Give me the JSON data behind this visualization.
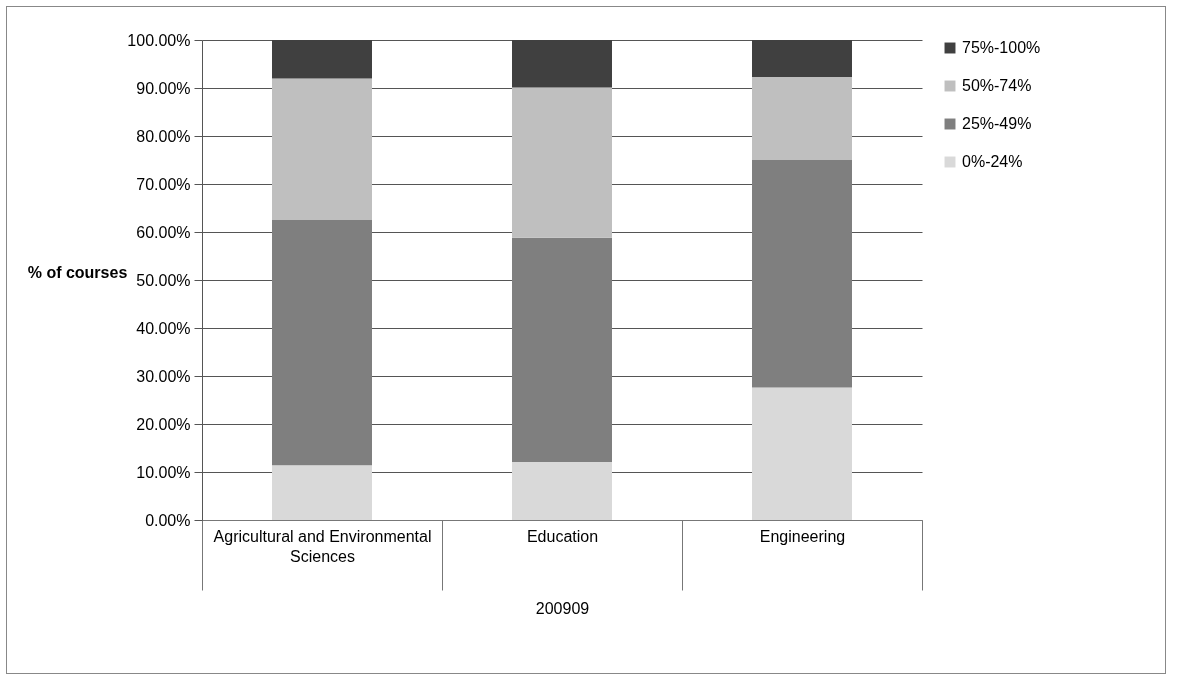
{
  "chart_data": {
    "type": "bar",
    "stacked": true,
    "ylabel": "% of courses",
    "xlabel": "200909",
    "categories": [
      "Agricultural and Environmental Sciences",
      "Education",
      "Engineering"
    ],
    "series": [
      {
        "name": "0%-24%",
        "color": "#d9d9d9",
        "values": [
          11.4,
          12.1,
          27.6
        ]
      },
      {
        "name": "25%-49%",
        "color": "#7f7f7f",
        "values": [
          51.2,
          46.7,
          47.4
        ]
      },
      {
        "name": "50%-74%",
        "color": "#bfbfbf",
        "values": [
          29.4,
          31.3,
          17.3
        ]
      },
      {
        "name": "75%-100%",
        "color": "#404040",
        "values": [
          8.0,
          9.9,
          7.7
        ]
      }
    ],
    "ylim": [
      0,
      100
    ],
    "yticks": [
      {
        "value": 0,
        "label": "0.00%"
      },
      {
        "value": 10,
        "label": "10.00%"
      },
      {
        "value": 20,
        "label": "20.00%"
      },
      {
        "value": 30,
        "label": "30.00%"
      },
      {
        "value": 40,
        "label": "40.00%"
      },
      {
        "value": 50,
        "label": "50.00%"
      },
      {
        "value": 60,
        "label": "60.00%"
      },
      {
        "value": 70,
        "label": "70.00%"
      },
      {
        "value": 80,
        "label": "80.00%"
      },
      {
        "value": 90,
        "label": "90.00%"
      },
      {
        "value": 100,
        "label": "100.00%"
      }
    ],
    "grid": "y",
    "legend": "right"
  }
}
